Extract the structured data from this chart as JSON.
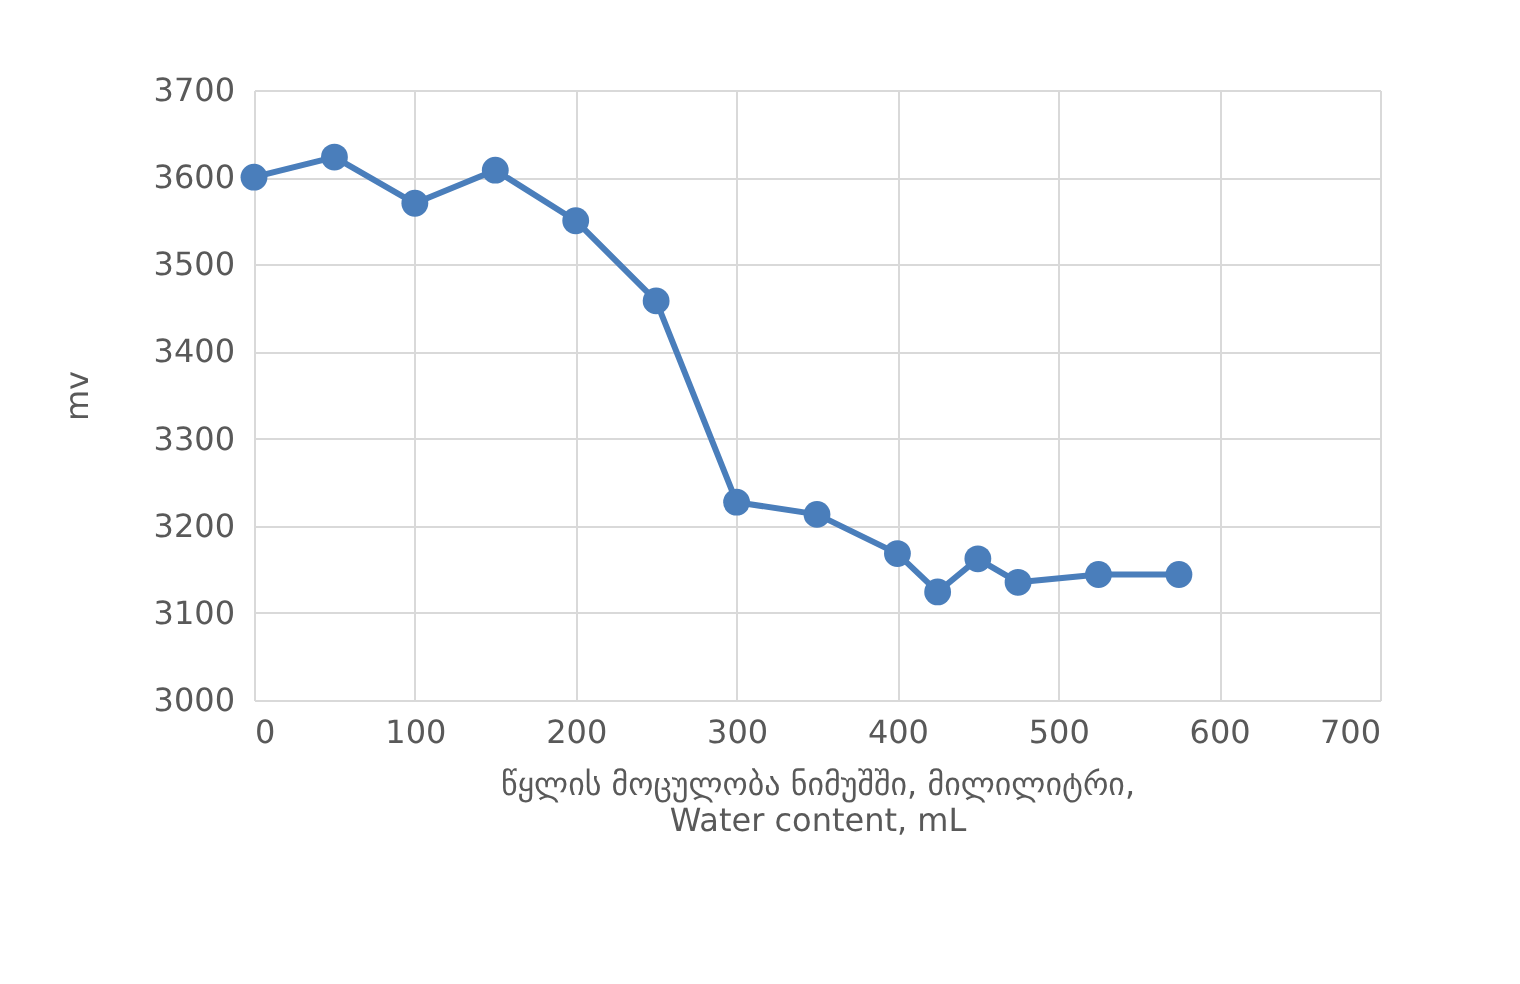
{
  "chart_data": {
    "type": "line",
    "xlabel": "წყლის  მოცულობა  ნიმუშში, მილილიტრი,\nWater content, mL",
    "ylabel": "mv",
    "x": [
      0,
      50,
      100,
      150,
      200,
      250,
      300,
      350,
      400,
      425,
      450,
      475,
      525,
      575
    ],
    "series": [
      {
        "color": "#4a7ebb",
        "values": [
          3600,
          3623,
          3570,
          3608,
          3550,
          3458,
          3227,
          3213,
          3168,
          3124,
          3162,
          3135,
          3144,
          3144
        ]
      }
    ],
    "xlim": [
      0,
      700
    ],
    "xticks": [
      0,
      100,
      200,
      300,
      400,
      500,
      600,
      700
    ],
    "ylim": [
      3000,
      3700
    ],
    "yticks": [
      3000,
      3100,
      3200,
      3300,
      3400,
      3500,
      3600,
      3700
    ],
    "grid": true,
    "marker": "circle",
    "line_style": "solid"
  }
}
